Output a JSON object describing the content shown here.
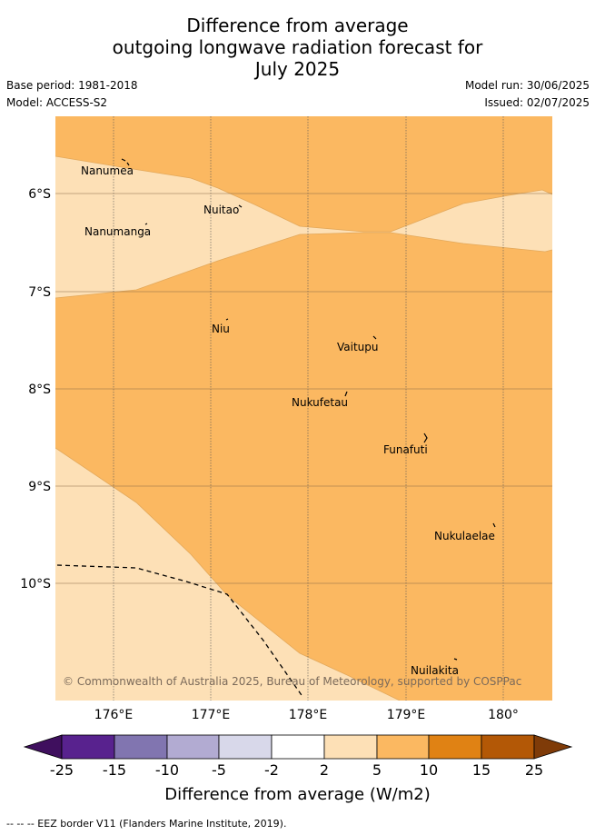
{
  "title": {
    "line1": "Difference from average",
    "line2": "outgoing longwave radiation forecast for",
    "line3": "July 2025"
  },
  "meta": {
    "base_period": "Base period: 1981-2018",
    "model": "Model: ACCESS-S2",
    "model_run": "Model run: 30/06/2025",
    "issued": "Issued: 02/07/2025"
  },
  "map": {
    "colors": {
      "above_5_10": "#fbb861",
      "above_2_5": "#fde0b6"
    },
    "x_ticks": [
      "176°E",
      "177°E",
      "178°E",
      "179°E",
      "180°"
    ],
    "y_ticks": [
      "6°S",
      "7°S",
      "8°S",
      "9°S",
      "10°S"
    ],
    "places": [
      {
        "name": "Nanumea"
      },
      {
        "name": "Nuitao"
      },
      {
        "name": "Nanumanga"
      },
      {
        "name": "Niu"
      },
      {
        "name": "Vaitupu"
      },
      {
        "name": "Nukufetau"
      },
      {
        "name": "Funafuti"
      },
      {
        "name": "Nukulaelae"
      },
      {
        "name": "Nuilakita"
      }
    ],
    "copyright": "© Commonwealth of Australia 2025, Bureau of Meteorology, supported by COSPPac"
  },
  "colorbar": {
    "labels": [
      "-25",
      "-15",
      "-10",
      "-5",
      "-2",
      "2",
      "5",
      "10",
      "15",
      "25"
    ],
    "colors": [
      "#3f0f5e",
      "#58228e",
      "#8175b0",
      "#b2abd2",
      "#d8d8ea",
      "#ffffff",
      "#fde0b6",
      "#fbb861",
      "#e08214",
      "#b35806",
      "#7f3b08"
    ],
    "title": "Difference from average (W/m2)"
  },
  "footer": "-- -- -- EEZ border V11 (Flanders Marine Institute, 2019)."
}
